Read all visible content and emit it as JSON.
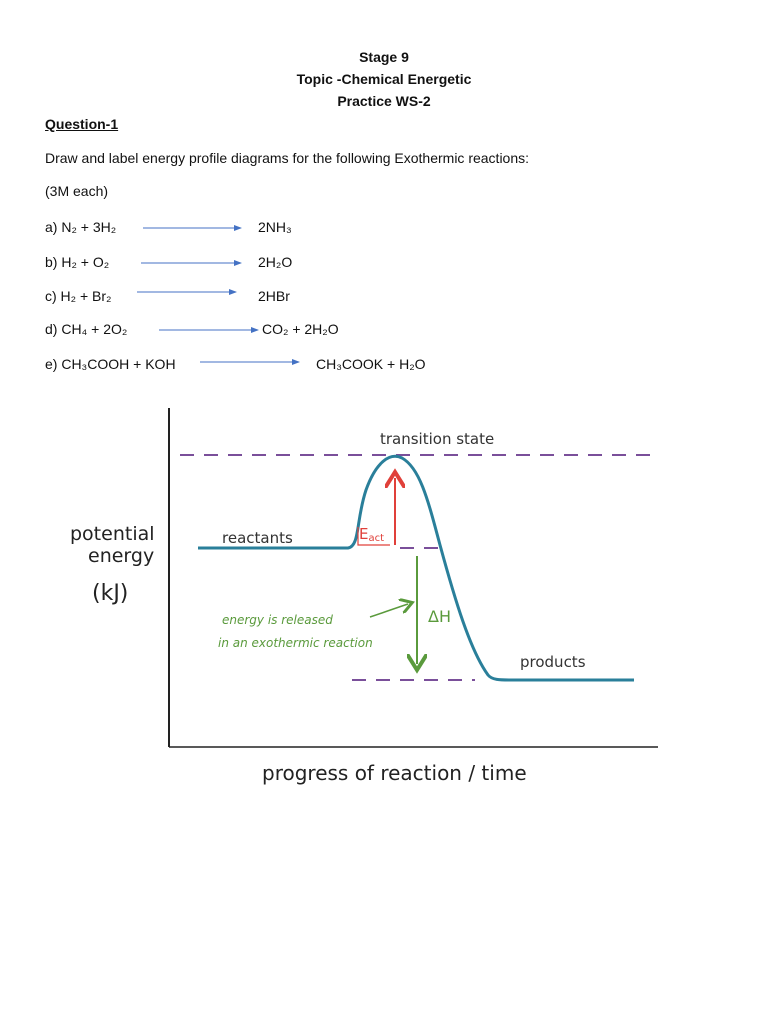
{
  "header": {
    "lines": [
      "Stage 9",
      "Topic -Chemical Energetic",
      "Practice WS-2"
    ]
  },
  "question": {
    "title": "Question-1",
    "instruction": "Draw and label energy profile diagrams for the following Exothermic reactions:",
    "marks": "(3M each)",
    "reactions": [
      {
        "reactants": "a) N₂ + 3H₂",
        "product": "2NH₃"
      },
      {
        "reactants": "b) H₂ + O₂",
        "product": "2H₂O"
      },
      {
        "reactants": "c) H₂ + Br₂",
        "product": "2HBr"
      },
      {
        "reactants": "d) CH₄ + 2O₂",
        "product": "CO₂ + 2H₂O"
      },
      {
        "reactants": "e) CH₃COOH + KOH",
        "product": "CH₃COOK + H₂O"
      }
    ]
  },
  "diagram": {
    "y_axis_label": [
      "potential",
      "energy",
      "(kJ)"
    ],
    "x_axis_label": "progress of reaction / time",
    "transition_state": "transition state",
    "reactants": "reactants",
    "products": "products",
    "activation_energy": {
      "symbol": "E",
      "subscript": "act"
    },
    "delta_h": "ΔH",
    "release_note": [
      "energy is released",
      "in an exothermic reaction"
    ]
  }
}
